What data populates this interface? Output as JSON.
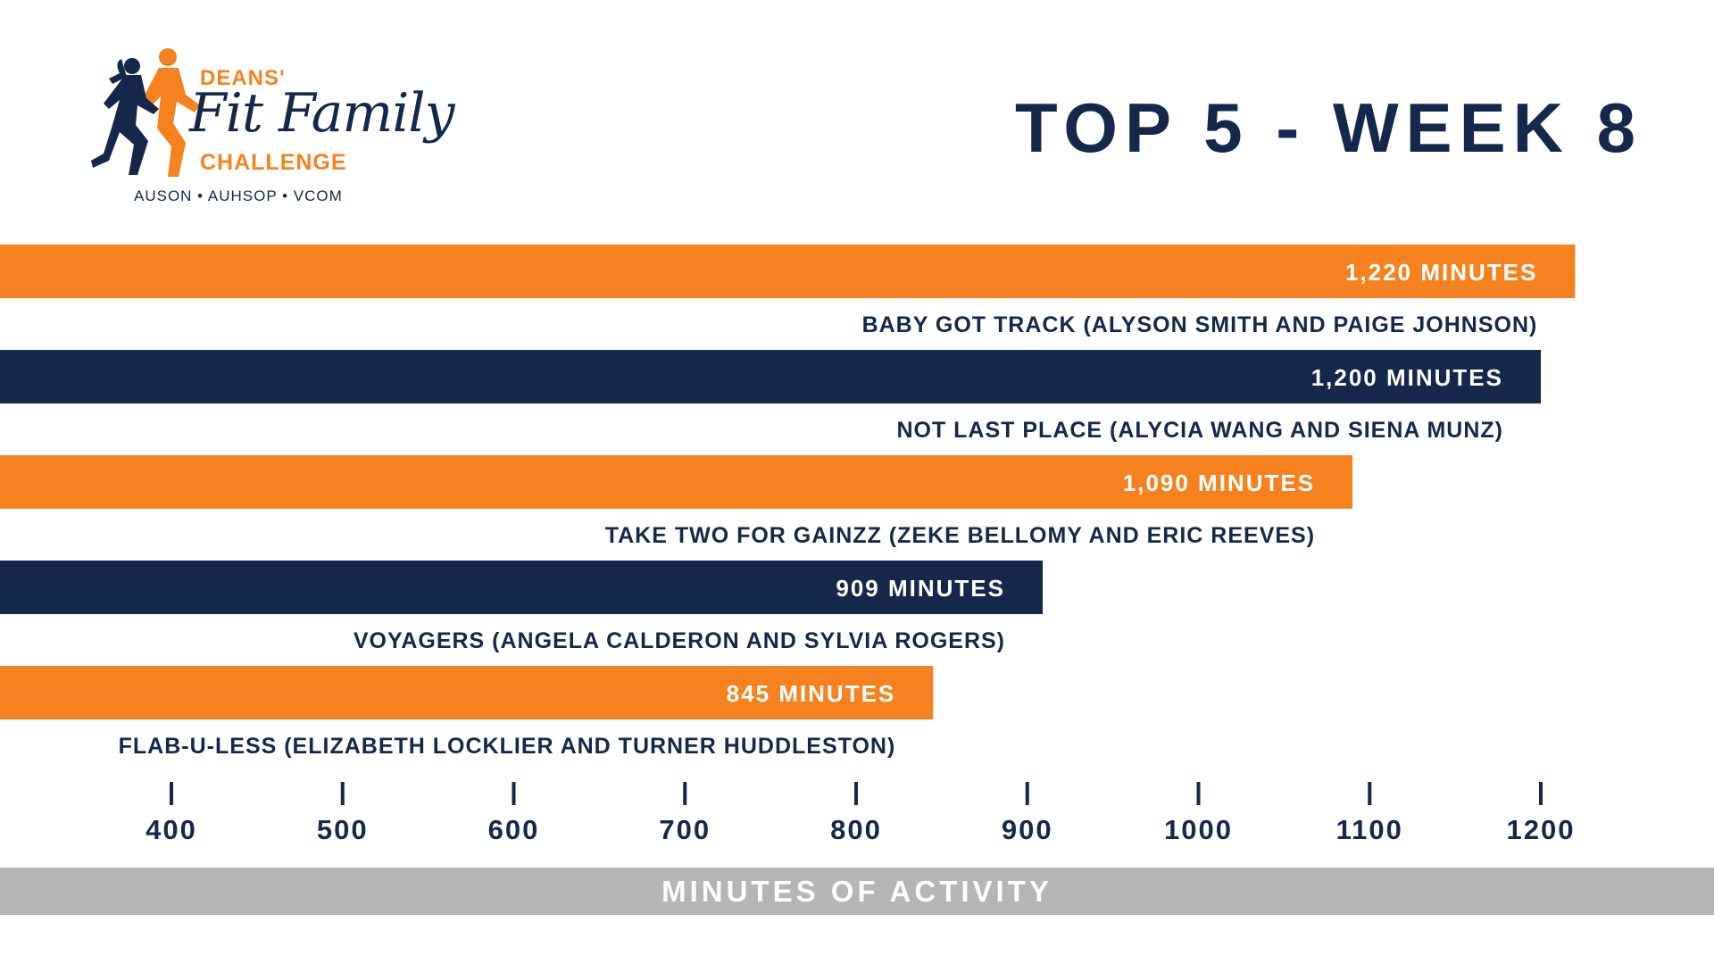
{
  "header": {
    "title": "TOP 5 - WEEK 8"
  },
  "logo": {
    "line1": "DEANS'",
    "line2": "Fit Family",
    "line3": "CHALLENGE",
    "schools": "AUSON • AUHSOP • VCOM"
  },
  "colors": {
    "navy": "#15284B",
    "orange": "#F5821F",
    "band": "#B5B5B5"
  },
  "chart_data": {
    "type": "bar",
    "orientation": "horizontal",
    "categories": [
      "BABY GOT TRACK (ALYSON SMITH AND PAIGE JOHNSON)",
      "NOT LAST PLACE (ALYCIA WANG AND SIENA MUNZ)",
      "TAKE TWO FOR GAINZZ (ZEKE BELLOMY AND ERIC REEVES)",
      "VOYAGERS (ANGELA CALDERON AND SYLVIA ROGERS)",
      "FLAB-U-LESS (ELIZABETH LOCKLIER AND TURNER HUDDLESTON)"
    ],
    "values": [
      1220,
      1200,
      1090,
      909,
      845
    ],
    "value_labels": [
      "1,220 MINUTES",
      "1,200 MINUTES",
      "1,090 MINUTES",
      "909 MINUTES",
      "845 MINUTES"
    ],
    "bar_colors": [
      "#F5821F",
      "#15284B",
      "#F5821F",
      "#15284B",
      "#F5821F"
    ],
    "xticks": [
      400,
      500,
      600,
      700,
      800,
      900,
      1000,
      1100,
      1200
    ],
    "xlabel": "MINUTES OF ACTIVITY",
    "xlim": [
      400,
      1200
    ],
    "grid": false,
    "legend": "none"
  }
}
